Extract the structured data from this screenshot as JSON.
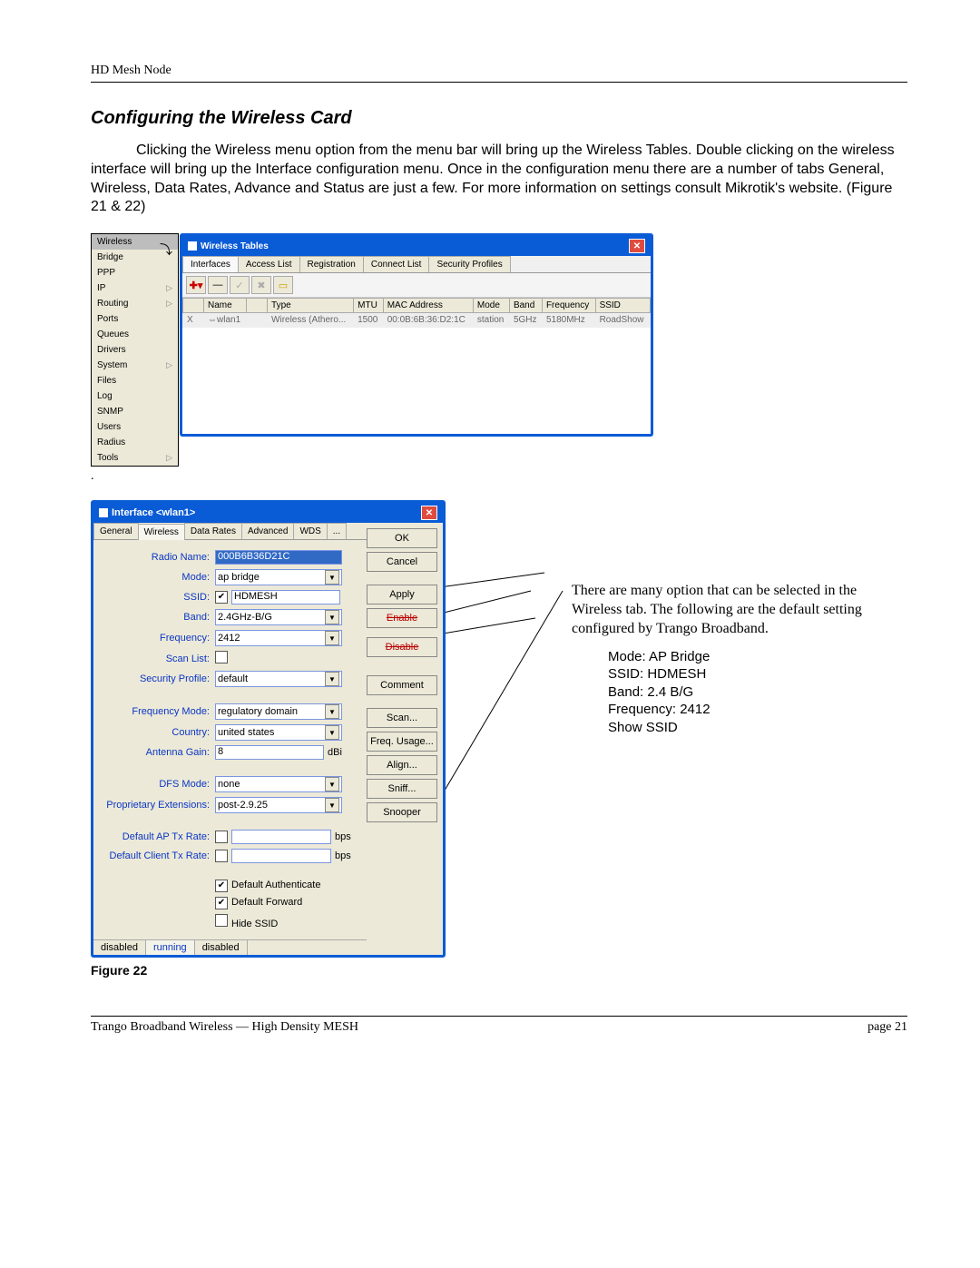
{
  "page": {
    "header": "HD Mesh Node",
    "section_title": "Configuring the Wireless Card",
    "body": "Clicking the Wireless menu option from the menu bar will bring up the Wireless Tables. Double clicking on the wireless interface will bring up the Interface configuration menu.  Once in the configuration menu there are a number of tabs General, Wireless, Data Rates, Advance and Status are just a few. For more information on settings consult Mikrotik's website. (Figure 21 & 22)",
    "fig21": "Figure 21",
    "dot": ".",
    "fig22": "Figure 22",
    "footer_left": "Trango Broadband Wireless — High Density MESH",
    "footer_right": "page 21"
  },
  "menu": {
    "items": [
      "Wireless",
      "Bridge",
      "PPP",
      "IP",
      "Routing",
      "Ports",
      "Queues",
      "Drivers",
      "System",
      "Files",
      "Log",
      "SNMP",
      "Users",
      "Radius",
      "Tools"
    ],
    "arrow_indices": [
      3,
      4,
      8,
      14
    ],
    "selected_index": 0
  },
  "win1": {
    "title": "Wireless Tables",
    "tabs": [
      "Interfaces",
      "Access List",
      "Registration",
      "Connect List",
      "Security Profiles"
    ],
    "active_tab": 0,
    "columns": [
      "",
      "Name",
      "",
      "Type",
      "MTU",
      "MAC Address",
      "Mode",
      "Band",
      "Frequency",
      "SSID"
    ],
    "row": {
      "x": "X",
      "name": "⇔wlan1",
      "type": "Wireless (Athero...",
      "mtu": "1500",
      "mac": "00:0B:6B:36:D2:1C",
      "mode": "station",
      "band": "5GHz",
      "freq": "5180MHz",
      "ssid": "RoadShow"
    }
  },
  "win2": {
    "title": "Interface <wlan1>",
    "tabs": [
      "General",
      "Wireless",
      "Data Rates",
      "Advanced",
      "WDS",
      "..."
    ],
    "active_tab": 1,
    "radio_name_label": "Radio Name:",
    "radio_name": "000B6B36D21C",
    "mode_label": "Mode:",
    "mode": "ap bridge",
    "ssid_label": "SSID:",
    "ssid": "HDMESH",
    "band_label": "Band:",
    "band": "2.4GHz-B/G",
    "freq_label": "Frequency:",
    "freq": "2412",
    "scanlist_label": "Scan List:",
    "scanlist": "",
    "secprof_label": "Security Profile:",
    "secprof": "default",
    "freqmode_label": "Frequency Mode:",
    "freqmode": "regulatory domain",
    "country_label": "Country:",
    "country": "united states",
    "antgain_label": "Antenna Gain:",
    "antgain": "8",
    "antgain_unit": "dBi",
    "dfs_label": "DFS Mode:",
    "dfs": "none",
    "propext_label": "Proprietary Extensions:",
    "propext": "post-2.9.25",
    "defap_label": "Default AP Tx Rate:",
    "defap_unit": "bps",
    "defcl_label": "Default Client Tx Rate:",
    "defcl_unit": "bps",
    "chk1": "Default Authenticate",
    "chk2": "Default Forward",
    "chk3": "Hide SSID",
    "status": {
      "disabled": "disabled",
      "running": "running",
      "disabled2": "disabled"
    },
    "buttons": [
      "OK",
      "Cancel",
      "Apply",
      "Enable",
      "Disable",
      "Comment",
      "Scan...",
      "Freq. Usage...",
      "Align...",
      "Sniff...",
      "Snooper"
    ],
    "strike_indices": [
      3,
      4
    ]
  },
  "callout": {
    "p1": "There are many option that can be selected in the Wireless tab. The following are the default setting configured by Trango Broadband.",
    "d1": "Mode: AP Bridge",
    "d2": "SSID: HDMESH",
    "d3": "Band: 2.4 B/G",
    "d4": "Frequency: 2412",
    "d5": "Show SSID"
  }
}
